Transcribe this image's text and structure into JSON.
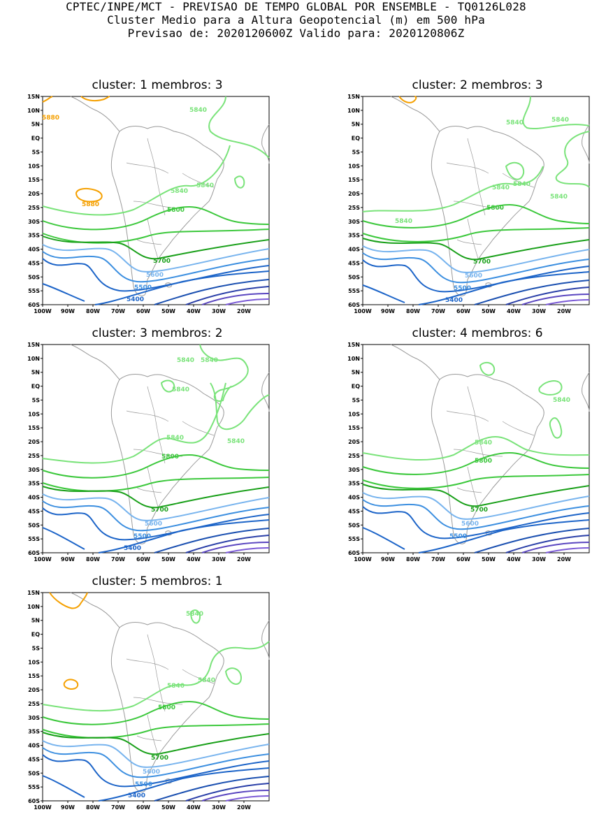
{
  "header": {
    "line1": "CPTEC/INPE/MCT - PREVISAO DE TEMPO GLOBAL POR ENSEMBLE - TQ0126L028",
    "line2": "Cluster Medio para a Altura Geopotencial (m) em 500 hPa",
    "line3": "Previsao de: 2020120600Z    Valido para: 2020120806Z"
  },
  "axes": {
    "lat_labels": [
      "15N",
      "10N",
      "5N",
      "EQ",
      "5S",
      "10S",
      "15S",
      "20S",
      "25S",
      "30S",
      "35S",
      "40S",
      "45S",
      "50S",
      "55S",
      "60S"
    ],
    "lon_labels": [
      "100W",
      "90W",
      "80W",
      "70W",
      "60W",
      "50W",
      "40W",
      "30W",
      "20W"
    ]
  },
  "colors": {
    "c5880": "#f5a000",
    "c5840": "#7ae37a",
    "c5800": "#3cc83c",
    "c5700": "#1aa01a",
    "c5600": "#78b4ee",
    "c5500": "#3c8fe0",
    "c5400": "#1c64c8",
    "c5300": "#1a4fb0",
    "c5200": "#2a3fa8",
    "c5100": "#5a46c0",
    "c5000": "#7b5ad6",
    "land": "#9a9a9a"
  },
  "panels": [
    {
      "title": "cluster: 1   membros: 3",
      "labels": {
        "l5880a": "5880",
        "l5880b": "5880",
        "l5840a": "5840",
        "l5840b": "5840",
        "l5840c": "5840",
        "l5800": "5800",
        "l5700": "5700",
        "l5600": "5600",
        "l5500": "5500",
        "l5400": "5400"
      }
    },
    {
      "title": "cluster: 2   membros: 3",
      "labels": {
        "l5840a": "5840",
        "l5840b": "5840",
        "l5840c": "5840",
        "l5840d": "5840",
        "l5840e": "5840",
        "l5840f": "5840",
        "l5800": "5800",
        "l5700": "5700",
        "l5600": "5600",
        "l5500": "5500",
        "l5400": "5400"
      }
    },
    {
      "title": "cluster: 3   membros: 2",
      "labels": {
        "l5840a": "5840",
        "l5840b": "5840",
        "l5840c": "5840",
        "l5840d": "5840",
        "l5840e": "5840",
        "l5800": "5800",
        "l5700": "5700",
        "l5600": "5600",
        "l5500": "5500",
        "l5400": "5400"
      }
    },
    {
      "title": "cluster: 4   membros: 6",
      "labels": {
        "l5840a": "5840",
        "l5840b": "5840",
        "l5800": "5800",
        "l5700": "5700",
        "l5600": "5600",
        "l5500": "5500"
      }
    },
    {
      "title": "cluster: 5   membros: 1",
      "labels": {
        "l5840a": "5840",
        "l5840b": "5840",
        "l5840c": "5840",
        "l5800": "5800",
        "l5700": "5700",
        "l5600": "5600",
        "l5500": "5500",
        "l5400": "5400"
      }
    }
  ]
}
